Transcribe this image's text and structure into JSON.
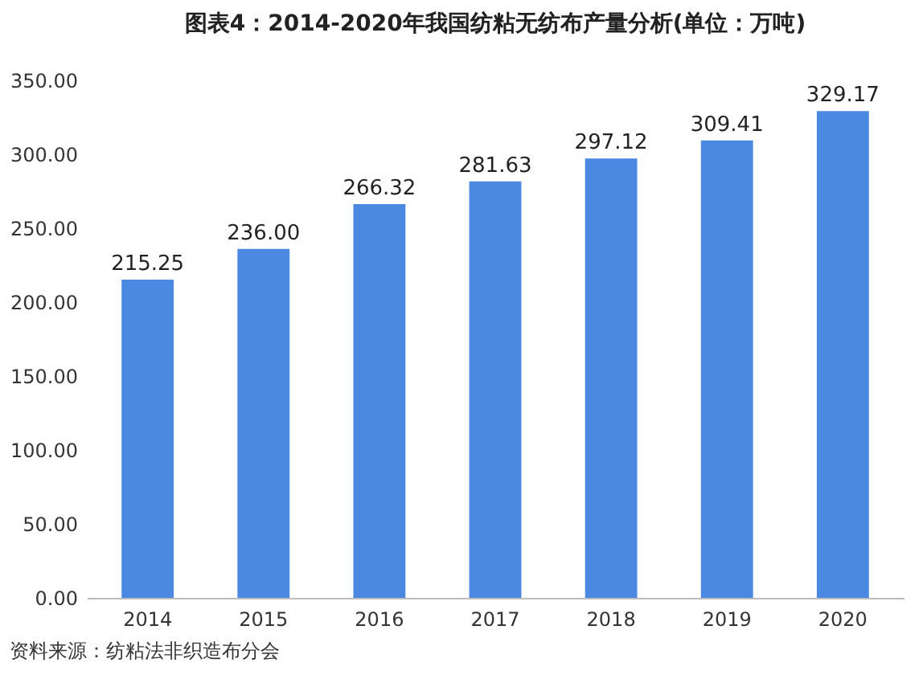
{
  "chart_data": {
    "type": "bar",
    "title": "图表4：2014-2020年我国纺粘无纺布产量分析(单位：万吨)",
    "categories": [
      "2014",
      "2015",
      "2016",
      "2017",
      "2018",
      "2019",
      "2020"
    ],
    "values": [
      215.25,
      236.0,
      266.32,
      281.63,
      297.12,
      309.41,
      329.17
    ],
    "value_labels": [
      "215.25",
      "236.00",
      "266.32",
      "281.63",
      "297.12",
      "309.41",
      "329.17"
    ],
    "color": "#4a88e2",
    "ylim": [
      0,
      350
    ],
    "yticks": [
      {
        "value": 0,
        "label": "0.00"
      },
      {
        "value": 50,
        "label": "50.00"
      },
      {
        "value": 100,
        "label": "100.00"
      },
      {
        "value": 150,
        "label": "150.00"
      },
      {
        "value": 200,
        "label": "200.00"
      },
      {
        "value": 250,
        "label": "250.00"
      },
      {
        "value": 300,
        "label": "300.00"
      },
      {
        "value": 350,
        "label": "350.00"
      }
    ],
    "grid": false,
    "annotations": [
      "资料来源：纺粘法非织造布分会"
    ]
  }
}
